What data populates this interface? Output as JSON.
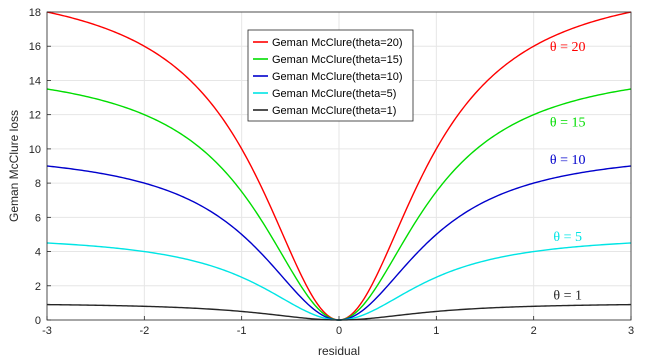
{
  "chart_data": {
    "type": "line",
    "title": "",
    "xlabel": "residual",
    "ylabel": "Geman McClure loss",
    "xlim": [
      -3,
      3
    ],
    "ylim": [
      0,
      18
    ],
    "xticks": [
      -3,
      -2,
      -1,
      0,
      1,
      2,
      3
    ],
    "yticks": [
      0,
      2,
      4,
      6,
      8,
      10,
      12,
      14,
      16,
      18
    ],
    "grid": true,
    "legend_position": "top-center",
    "series": [
      {
        "name": "Geman McClure(theta=20)",
        "theta": 20,
        "color": "#ff0000",
        "annotation": "θ = 20"
      },
      {
        "name": "Geman McClure(theta=15)",
        "theta": 15,
        "color": "#00dd00",
        "annotation": "θ = 15"
      },
      {
        "name": "Geman McClure(theta=10)",
        "theta": 10,
        "color": "#0000cc",
        "annotation": "θ = 10"
      },
      {
        "name": "Geman McClure(theta=5)",
        "theta": 5,
        "color": "#00e5e5",
        "annotation": "θ = 5"
      },
      {
        "name": "Geman McClure(theta=1)",
        "theta": 1,
        "color": "#262626",
        "annotation": "θ = 1"
      }
    ]
  }
}
